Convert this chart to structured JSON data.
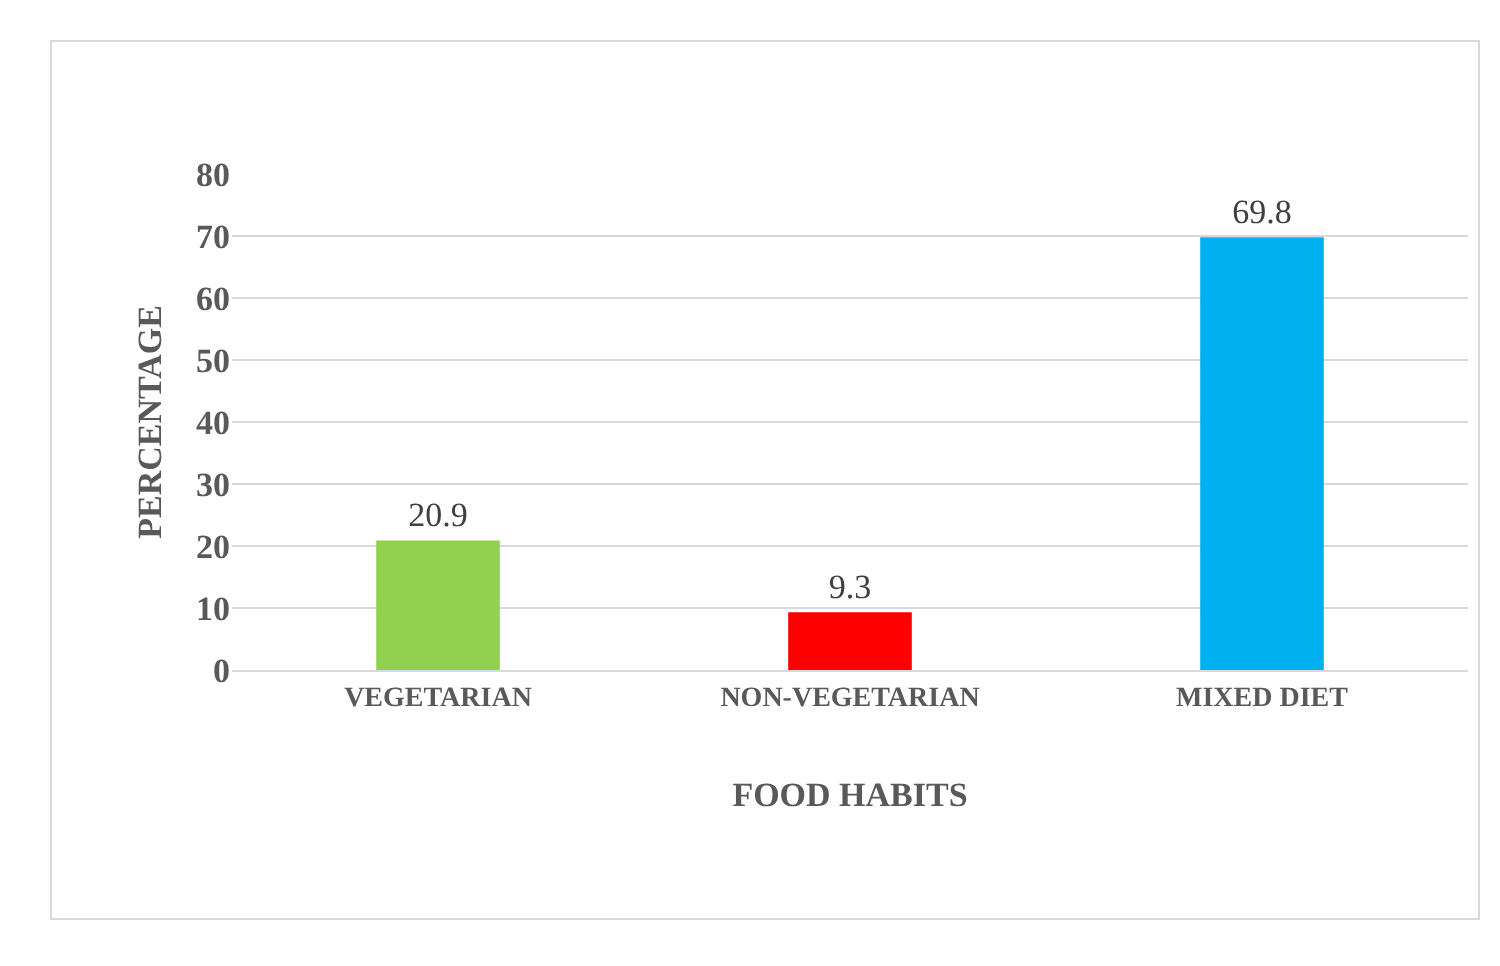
{
  "chart_data": {
    "type": "bar",
    "categories": [
      "VEGETARIAN",
      "NON-VEGETARIAN",
      "MIXED DIET"
    ],
    "values": [
      20.9,
      9.3,
      69.8
    ],
    "colors": [
      "#92d050",
      "#ff0000",
      "#00b0f0"
    ],
    "xlabel": "FOOD HABITS",
    "ylabel": "PERCENTAGE",
    "ylim": [
      0,
      80
    ],
    "yticks": [
      0,
      10,
      20,
      30,
      40,
      50,
      60,
      70,
      80
    ],
    "grid": "y",
    "data_labels": true,
    "legend": false
  }
}
